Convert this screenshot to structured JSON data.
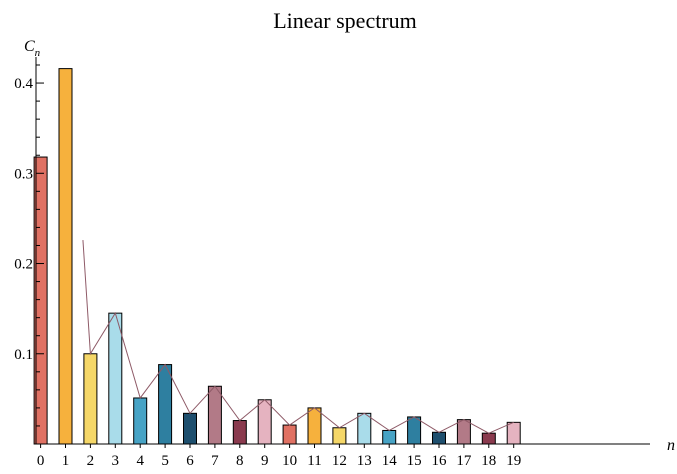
{
  "chart_data": {
    "type": "bar",
    "title": "Linear spectrum",
    "ylabel": "C",
    "ylabel_subscript": "n",
    "xlabel": "n",
    "ylim": [
      0,
      0.42
    ],
    "xlim": [
      -0.5,
      19.5
    ],
    "y_ticks": [
      0.1,
      0.2,
      0.3,
      0.4
    ],
    "y_tick_labels": [
      "0.1",
      "0.2",
      "0.3",
      "0.4"
    ],
    "grid": false,
    "categories": [
      "0",
      "1",
      "2",
      "3",
      "4",
      "5",
      "6",
      "7",
      "8",
      "9",
      "10",
      "11",
      "12",
      "13",
      "14",
      "15",
      "16",
      "17",
      "18",
      "19"
    ],
    "values": [
      0.318,
      0.416,
      0.1,
      0.145,
      0.051,
      0.088,
      0.034,
      0.064,
      0.026,
      0.049,
      0.021,
      0.04,
      0.018,
      0.034,
      0.015,
      0.03,
      0.013,
      0.027,
      0.012,
      0.024
    ],
    "bar_colors": [
      "#e07163",
      "#f6b13d",
      "#f5d768",
      "#a9dcea",
      "#47a3c5",
      "#2e7fa0",
      "#1e4f6e",
      "#b27a87",
      "#8a3a4e",
      "#e5b3c0",
      "#e07163",
      "#f6b13d",
      "#f5d768",
      "#a9dcea",
      "#47a3c5",
      "#2e7fa0",
      "#1e4f6e",
      "#b27a87",
      "#8a3a4e",
      "#e5b3c0"
    ],
    "envelope": {
      "color": "#8e5a67",
      "points": [
        [
          1.7,
          0.226
        ],
        [
          2.0,
          0.1
        ],
        [
          3.0,
          0.145
        ],
        [
          4.0,
          0.051
        ],
        [
          5.0,
          0.088
        ],
        [
          6.0,
          0.034
        ],
        [
          7.0,
          0.064
        ],
        [
          8.0,
          0.026
        ],
        [
          9.0,
          0.049
        ],
        [
          10.0,
          0.021
        ],
        [
          11.0,
          0.04
        ],
        [
          12.0,
          0.018
        ],
        [
          13.0,
          0.034
        ],
        [
          14.0,
          0.015
        ],
        [
          15.0,
          0.03
        ],
        [
          16.0,
          0.013
        ],
        [
          17.0,
          0.027
        ],
        [
          18.0,
          0.012
        ],
        [
          19.0,
          0.024
        ]
      ]
    }
  }
}
